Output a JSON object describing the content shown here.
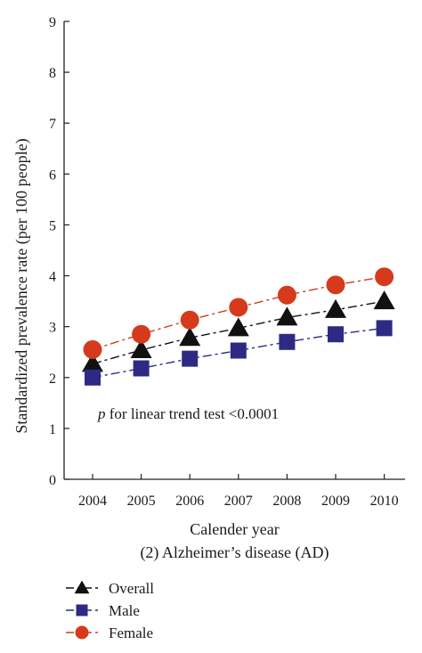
{
  "chart_data": {
    "type": "line",
    "xlabel": "Calender year",
    "ylabel": "Standardized prevalence rate (per 100 people)",
    "subtitle": "(2) Alzheimer’s disease (AD)",
    "annotation_p": "p",
    "annotation_rest": " for linear trend test <0.0001",
    "x": [
      2004,
      2005,
      2006,
      2007,
      2008,
      2009,
      2010
    ],
    "ylim": [
      0,
      9
    ],
    "yticks": [
      0,
      1,
      2,
      3,
      4,
      5,
      6,
      7,
      8,
      9
    ],
    "grid": false,
    "legend_position": "bottom-left",
    "series": [
      {
        "name": "Overall",
        "marker": "triangle",
        "color": "#111111",
        "values": [
          2.27,
          2.54,
          2.78,
          2.97,
          3.18,
          3.33,
          3.5
        ]
      },
      {
        "name": "Male",
        "marker": "square",
        "color": "#2e2a83",
        "values": [
          2.0,
          2.18,
          2.37,
          2.53,
          2.7,
          2.85,
          2.97
        ]
      },
      {
        "name": "Female",
        "marker": "circle",
        "color": "#d63a1c",
        "values": [
          2.55,
          2.85,
          3.13,
          3.38,
          3.62,
          3.82,
          3.98
        ]
      }
    ]
  }
}
